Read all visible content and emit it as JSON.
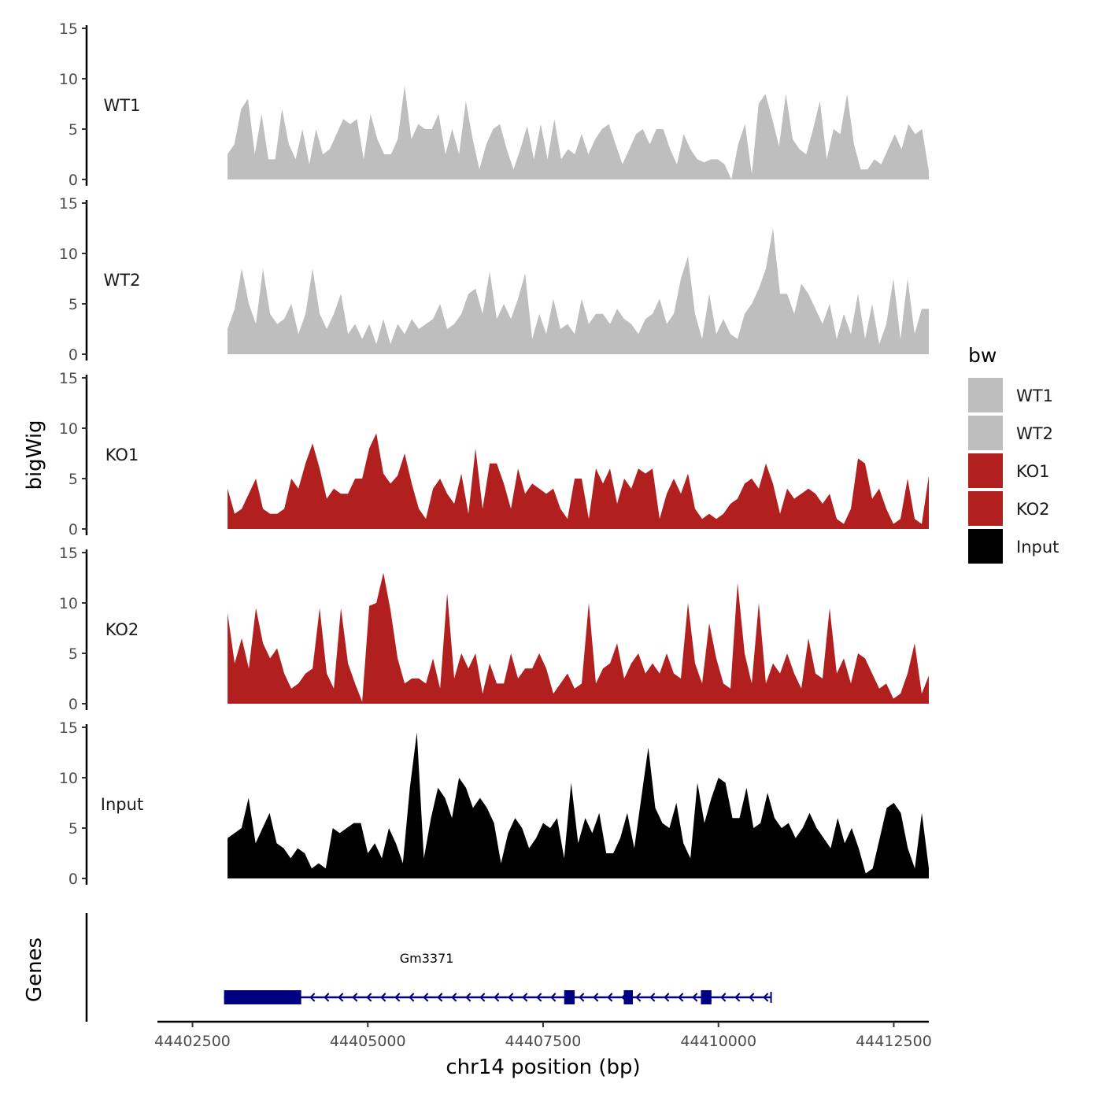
{
  "chart_data": {
    "type": "area",
    "ylabel": "bigWig",
    "xlabel": "chr14 position (bp)",
    "xlim": [
      44402000,
      44413000
    ],
    "data_range": [
      44403000,
      44413000
    ],
    "x_ticks": [
      44402500,
      44405000,
      44407500,
      44410000,
      44412500
    ],
    "x_tick_labels": [
      "44402500",
      "44405000",
      "44407500",
      "44410000",
      "44412500"
    ],
    "ylim": [
      0,
      15
    ],
    "y_ticks": [
      0,
      5,
      10,
      15
    ],
    "y_tick_labels": [
      "0",
      "5",
      "10",
      "15"
    ],
    "series": [
      {
        "name": "WT1",
        "color": "#bebebe",
        "values": [
          2.5,
          3.5,
          7,
          8,
          2.5,
          6.5,
          2,
          2,
          7,
          3.5,
          2,
          5,
          1.5,
          5,
          2.5,
          3,
          4.5,
          6,
          5.5,
          6,
          2,
          6.5,
          4,
          2.5,
          2.5,
          4,
          9.3,
          4,
          5.5,
          5,
          5,
          6.5,
          2.5,
          5,
          2.5,
          7.8,
          4,
          1,
          3.5,
          5,
          5.5,
          3,
          1,
          3,
          5.3,
          2,
          5.5,
          2,
          6,
          2,
          3,
          2.5,
          4.5,
          2.5,
          4,
          5,
          5.5,
          3.5,
          1.5,
          3,
          4.5,
          5,
          3.5,
          5,
          5,
          3,
          1.5,
          4.5,
          3,
          2,
          1.7,
          2,
          2,
          1.5,
          0,
          3.5,
          5.5,
          0.5,
          7.5,
          8.5,
          6,
          3.3,
          8.5,
          4,
          3,
          2.5,
          5,
          7.8,
          2,
          5,
          4.5,
          8.5,
          3.5,
          1,
          1,
          2,
          1.5,
          3,
          4.5,
          3,
          5.5,
          4.5,
          5,
          0.8
        ]
      },
      {
        "name": "WT2",
        "color": "#bebebe",
        "values": [
          2.5,
          4.5,
          8.5,
          5,
          3,
          8.5,
          4,
          3,
          3.5,
          5,
          2,
          4,
          8.5,
          4,
          2.5,
          4,
          6,
          2,
          3,
          1.5,
          3,
          1,
          3.5,
          1,
          3,
          2,
          3.5,
          2.5,
          3,
          3.5,
          5,
          2.5,
          3,
          4,
          6,
          6.5,
          4,
          8.2,
          3.5,
          5,
          3.5,
          5.5,
          8,
          1.5,
          4,
          2,
          5.5,
          2.5,
          3,
          2,
          5.5,
          3,
          4,
          4,
          3,
          4.5,
          3.5,
          3,
          2,
          3.5,
          4,
          5.5,
          3,
          4,
          7.5,
          9.7,
          4,
          1.5,
          6,
          2,
          3.5,
          2,
          1.5,
          4,
          5,
          6.5,
          8.5,
          12.5,
          6,
          6,
          4,
          7,
          6,
          4.5,
          3,
          5,
          1.5,
          4,
          2,
          6,
          1.5,
          5,
          1,
          3,
          7.5,
          1.5,
          7.5,
          2,
          4.5,
          4.5
        ]
      },
      {
        "name": "KO1",
        "color": "#b21f1f",
        "values": [
          4,
          1.5,
          2,
          3.5,
          5,
          2,
          1.5,
          1.5,
          2,
          5,
          4,
          6.5,
          8.5,
          6,
          3,
          4,
          3.5,
          3.5,
          5,
          5,
          8,
          9.5,
          5.5,
          4.5,
          5.3,
          7.5,
          4.5,
          2,
          1,
          4,
          5,
          3.5,
          2.5,
          5.5,
          1.5,
          8,
          2,
          6.5,
          6.5,
          4.5,
          2,
          6,
          3.5,
          4.5,
          4,
          3.5,
          4,
          2,
          1,
          5,
          5,
          1,
          6,
          4.5,
          6,
          2.5,
          5,
          4,
          6,
          5.5,
          6,
          1,
          3.5,
          5,
          3.5,
          5.5,
          2,
          1,
          1.5,
          1,
          1.5,
          2.5,
          3,
          4.5,
          5,
          4,
          6.5,
          4.5,
          1.5,
          4,
          3,
          3.5,
          4,
          3.5,
          2.5,
          3.5,
          1,
          0.5,
          2,
          7,
          6.5,
          3,
          4,
          2,
          0.5,
          1,
          5,
          1,
          0.5,
          5.3
        ]
      },
      {
        "name": "KO2",
        "color": "#b21f1f",
        "values": [
          9,
          4,
          6.5,
          3.5,
          9.5,
          6,
          4.5,
          5.5,
          3,
          1.5,
          2,
          3,
          3.5,
          9.5,
          3,
          1.5,
          9.5,
          4,
          2,
          0.2,
          9.7,
          10,
          13,
          9.3,
          4.5,
          2,
          2.5,
          2.5,
          2,
          4.5,
          1.5,
          11,
          2.5,
          5,
          3.5,
          5,
          1,
          4,
          2,
          2,
          5,
          2.5,
          3.5,
          3.5,
          5,
          3.5,
          1,
          2,
          3,
          1.5,
          2,
          10,
          2,
          3.5,
          4,
          6,
          2.5,
          4,
          5,
          3,
          4,
          3,
          5,
          3,
          2.5,
          10,
          4,
          2,
          8,
          4.5,
          2,
          1.5,
          12,
          5,
          2,
          10,
          2,
          4,
          3,
          5,
          3,
          1.5,
          6.5,
          3,
          2.5,
          9.5,
          3,
          4.5,
          2,
          5,
          4.5,
          3,
          1.5,
          2,
          0.5,
          1,
          3,
          6,
          1,
          2.8
        ]
      },
      {
        "name": "Input",
        "color": "#000000",
        "values": [
          4,
          4.5,
          5,
          8,
          3.5,
          5,
          6.5,
          3.5,
          3,
          2,
          3,
          2.5,
          1,
          1.5,
          1,
          5,
          4.5,
          5,
          5.5,
          5.5,
          2.5,
          3.5,
          2,
          5,
          3.5,
          1.5,
          9,
          14.5,
          2,
          6,
          9,
          8,
          6,
          10,
          9,
          7,
          8,
          7,
          5.5,
          1.5,
          4.5,
          6,
          5,
          3,
          4,
          5.5,
          5,
          6,
          2,
          9.5,
          3.5,
          6,
          4.5,
          6.5,
          2.5,
          2.5,
          4,
          6.5,
          3,
          8,
          13,
          7,
          5.5,
          5,
          7.5,
          3.5,
          2,
          9.5,
          5.5,
          8,
          10,
          9.5,
          6,
          6,
          9,
          5,
          5.5,
          8.5,
          6,
          5,
          5.5,
          4,
          5,
          6.5,
          5,
          4,
          3,
          6,
          3.5,
          5,
          3,
          0.5,
          1,
          4,
          7,
          7.5,
          6.5,
          3,
          1,
          6.5,
          1
        ]
      }
    ],
    "legend": {
      "title": "bw",
      "entries": [
        {
          "label": "WT1",
          "color": "#bebebe"
        },
        {
          "label": "WT2",
          "color": "#bebebe"
        },
        {
          "label": "KO1",
          "color": "#b21f1f"
        },
        {
          "label": "KO2",
          "color": "#b21f1f"
        },
        {
          "label": "Input",
          "color": "#000000"
        }
      ]
    },
    "gene_track": {
      "ylabel": "Genes",
      "gene_name": "Gm3371",
      "strand": "-",
      "color": "#000080",
      "start": 44402950,
      "end": 44410750,
      "exons": [
        [
          44402950,
          44404050
        ],
        [
          44407800,
          44407950
        ],
        [
          44408650,
          44408780
        ],
        [
          44409750,
          44409900
        ]
      ]
    }
  }
}
